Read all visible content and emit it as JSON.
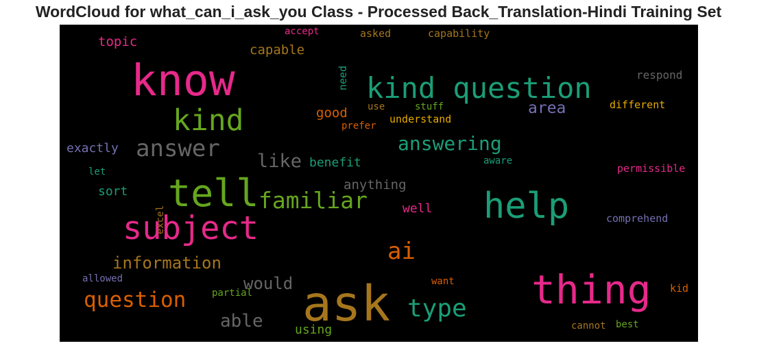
{
  "title": "WordCloud for what_can_i_ask_you Class - Processed Back_Translation-Hindi Training Set",
  "colors": {
    "pink": "#e7298a",
    "green": "#1b9e77",
    "olive": "#66a61e",
    "gold": "#a6761d",
    "orange": "#d95f02",
    "purple": "#7570b3",
    "gray": "#666666",
    "yellow": "#e6ab02",
    "background": "#000000"
  },
  "words": [
    {
      "text": "ask",
      "color": "gold"
    },
    {
      "text": "know",
      "color": "pink"
    },
    {
      "text": "thing",
      "color": "pink"
    },
    {
      "text": "help",
      "color": "green"
    },
    {
      "text": "kind question",
      "color": "green"
    },
    {
      "text": "tell",
      "color": "olive"
    },
    {
      "text": "subject",
      "color": "pink"
    },
    {
      "text": "kind",
      "color": "olive"
    },
    {
      "text": "answer",
      "color": "gray"
    },
    {
      "text": "type",
      "color": "green"
    },
    {
      "text": "familiar",
      "color": "olive"
    },
    {
      "text": "question",
      "color": "orange"
    },
    {
      "text": "ai",
      "color": "orange"
    },
    {
      "text": "answering",
      "color": "green"
    },
    {
      "text": "like",
      "color": "gray"
    },
    {
      "text": "information",
      "color": "gold"
    },
    {
      "text": "would",
      "color": "gray"
    },
    {
      "text": "able",
      "color": "gray"
    },
    {
      "text": "area",
      "color": "purple"
    },
    {
      "text": "capable",
      "color": "gold"
    },
    {
      "text": "anything",
      "color": "gray"
    },
    {
      "text": "topic",
      "color": "pink"
    },
    {
      "text": "exactly",
      "color": "purple"
    },
    {
      "text": "good",
      "color": "orange"
    },
    {
      "text": "benefit",
      "color": "green"
    },
    {
      "text": "using",
      "color": "olive"
    },
    {
      "text": "sort",
      "color": "green"
    },
    {
      "text": "well",
      "color": "pink"
    },
    {
      "text": "understand",
      "color": "yellow"
    },
    {
      "text": "respond",
      "color": "gray"
    },
    {
      "text": "different",
      "color": "yellow"
    },
    {
      "text": "comprehend",
      "color": "purple"
    },
    {
      "text": "permissible",
      "color": "pink"
    },
    {
      "text": "capability",
      "color": "gold"
    },
    {
      "text": "asked",
      "color": "gold"
    },
    {
      "text": "accept",
      "color": "pink"
    },
    {
      "text": "need",
      "color": "green"
    },
    {
      "text": "stuff",
      "color": "olive"
    },
    {
      "text": "use",
      "color": "gold"
    },
    {
      "text": "prefer",
      "color": "orange"
    },
    {
      "text": "aware",
      "color": "green"
    },
    {
      "text": "let",
      "color": "green"
    },
    {
      "text": "excel",
      "color": "gold"
    },
    {
      "text": "allowed",
      "color": "purple"
    },
    {
      "text": "partial",
      "color": "olive"
    },
    {
      "text": "want",
      "color": "orange"
    },
    {
      "text": "kid",
      "color": "orange"
    },
    {
      "text": "cannot",
      "color": "gold"
    },
    {
      "text": "best",
      "color": "olive"
    }
  ]
}
